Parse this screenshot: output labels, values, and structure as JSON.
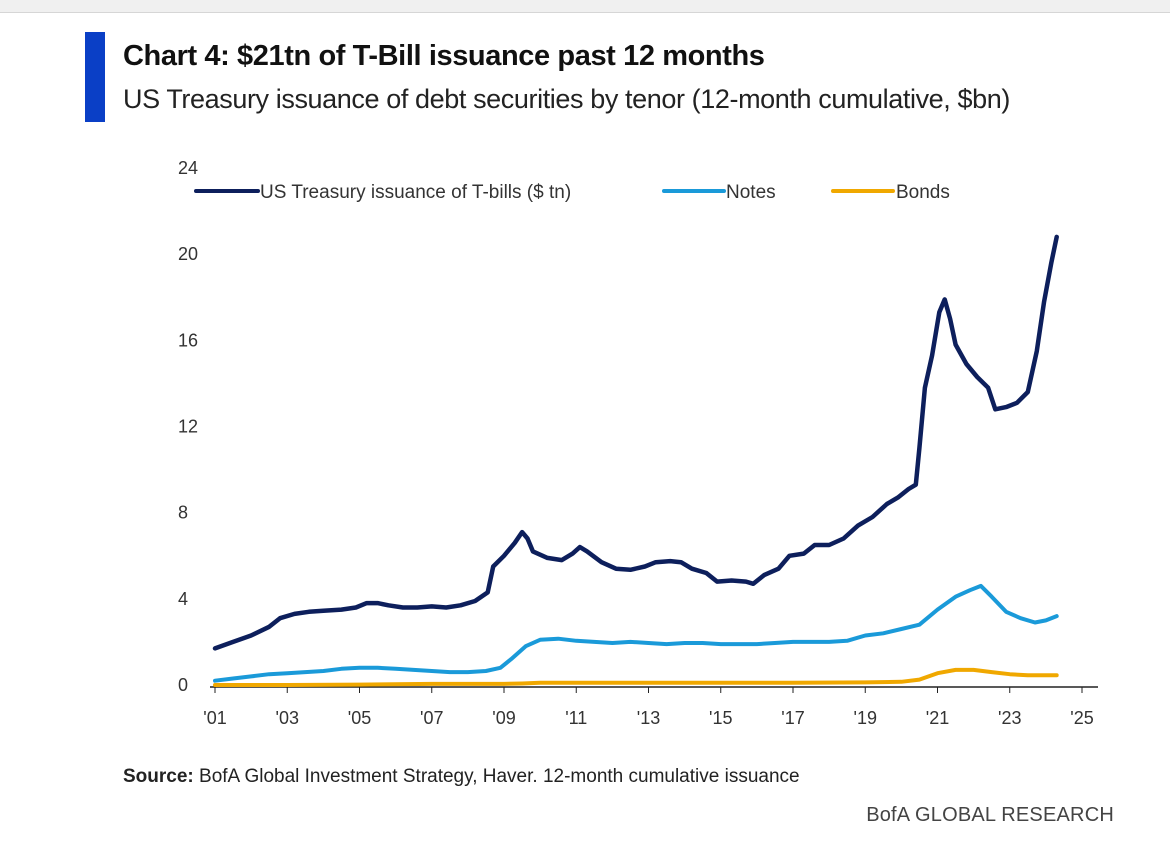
{
  "header": {
    "title": "Chart 4: $21tn of T-Bill issuance past 12 months",
    "subtitle": "US Treasury issuance of debt securities by tenor (12-month cumulative, $bn)"
  },
  "footer": {
    "source_label": "Source:",
    "source_text": " BofA Global Investment Strategy, Haver. 12-month cumulative issuance",
    "brand": "BofA GLOBAL RESEARCH"
  },
  "colors": {
    "accent": "#0a3fc6",
    "tbills": "#0d1f5c",
    "notes": "#1a9ad9",
    "bonds": "#f0a800"
  },
  "chart_data": {
    "type": "line",
    "title": "Chart 4: $21tn of T-Bill issuance past 12 months",
    "subtitle": "US Treasury issuance of debt securities by tenor (12-month cumulative, $bn)",
    "xlabel": "",
    "ylabel": "",
    "xlim": [
      2001,
      2025
    ],
    "ylim": [
      0,
      24
    ],
    "x_ticks": [
      2001,
      2003,
      2005,
      2007,
      2009,
      2011,
      2013,
      2015,
      2017,
      2019,
      2021,
      2023,
      2025
    ],
    "x_tick_labels": [
      "'01",
      "'03",
      "'05",
      "'07",
      "'09",
      "'11",
      "'13",
      "'15",
      "'17",
      "'19",
      "'21",
      "'23",
      "'25"
    ],
    "y_ticks": [
      0,
      4,
      8,
      12,
      16,
      20,
      24
    ],
    "y_tick_labels": [
      "0",
      "4",
      "8",
      "12",
      "16",
      "20",
      "24"
    ],
    "grid": false,
    "legend": "top",
    "series": [
      {
        "name": "US Treasury issuance of T-bills ($ tn)",
        "color": "#0d1f5c",
        "points": [
          [
            2001.0,
            1.7
          ],
          [
            2001.5,
            2.0
          ],
          [
            2002.0,
            2.3
          ],
          [
            2002.5,
            2.7
          ],
          [
            2002.8,
            3.1
          ],
          [
            2003.2,
            3.3
          ],
          [
            2003.6,
            3.4
          ],
          [
            2004.0,
            3.45
          ],
          [
            2004.5,
            3.5
          ],
          [
            2004.9,
            3.6
          ],
          [
            2005.2,
            3.8
          ],
          [
            2005.5,
            3.8
          ],
          [
            2005.8,
            3.7
          ],
          [
            2006.2,
            3.6
          ],
          [
            2006.6,
            3.6
          ],
          [
            2007.0,
            3.65
          ],
          [
            2007.4,
            3.6
          ],
          [
            2007.8,
            3.7
          ],
          [
            2008.2,
            3.9
          ],
          [
            2008.55,
            4.3
          ],
          [
            2008.7,
            5.5
          ],
          [
            2009.0,
            6.0
          ],
          [
            2009.3,
            6.6
          ],
          [
            2009.5,
            7.1
          ],
          [
            2009.65,
            6.8
          ],
          [
            2009.8,
            6.2
          ],
          [
            2010.2,
            5.9
          ],
          [
            2010.6,
            5.8
          ],
          [
            2010.9,
            6.1
          ],
          [
            2011.1,
            6.4
          ],
          [
            2011.3,
            6.2
          ],
          [
            2011.7,
            5.7
          ],
          [
            2012.1,
            5.4
          ],
          [
            2012.5,
            5.35
          ],
          [
            2012.9,
            5.5
          ],
          [
            2013.2,
            5.7
          ],
          [
            2013.6,
            5.75
          ],
          [
            2013.9,
            5.7
          ],
          [
            2014.2,
            5.4
          ],
          [
            2014.6,
            5.2
          ],
          [
            2014.9,
            4.8
          ],
          [
            2015.3,
            4.85
          ],
          [
            2015.7,
            4.8
          ],
          [
            2015.9,
            4.7
          ],
          [
            2016.2,
            5.1
          ],
          [
            2016.6,
            5.4
          ],
          [
            2016.9,
            6.0
          ],
          [
            2017.3,
            6.1
          ],
          [
            2017.6,
            6.5
          ],
          [
            2018.0,
            6.5
          ],
          [
            2018.4,
            6.8
          ],
          [
            2018.8,
            7.4
          ],
          [
            2019.2,
            7.8
          ],
          [
            2019.6,
            8.4
          ],
          [
            2019.9,
            8.7
          ],
          [
            2020.2,
            9.1
          ],
          [
            2020.4,
            9.3
          ],
          [
            2020.5,
            11.0
          ],
          [
            2020.65,
            13.8
          ],
          [
            2020.85,
            15.3
          ],
          [
            2021.05,
            17.3
          ],
          [
            2021.2,
            17.9
          ],
          [
            2021.35,
            17.0
          ],
          [
            2021.5,
            15.8
          ],
          [
            2021.8,
            14.9
          ],
          [
            2022.1,
            14.3
          ],
          [
            2022.4,
            13.8
          ],
          [
            2022.6,
            12.8
          ],
          [
            2022.9,
            12.9
          ],
          [
            2023.2,
            13.1
          ],
          [
            2023.5,
            13.6
          ],
          [
            2023.75,
            15.5
          ],
          [
            2023.95,
            17.8
          ],
          [
            2024.15,
            19.6
          ],
          [
            2024.3,
            20.8
          ]
        ]
      },
      {
        "name": "Notes",
        "color": "#1a9ad9",
        "points": [
          [
            2001.0,
            0.2
          ],
          [
            2001.5,
            0.3
          ],
          [
            2002.0,
            0.4
          ],
          [
            2002.5,
            0.5
          ],
          [
            2003.0,
            0.55
          ],
          [
            2003.5,
            0.6
          ],
          [
            2004.0,
            0.65
          ],
          [
            2004.5,
            0.75
          ],
          [
            2005.0,
            0.8
          ],
          [
            2005.5,
            0.8
          ],
          [
            2006.0,
            0.75
          ],
          [
            2006.5,
            0.7
          ],
          [
            2007.0,
            0.65
          ],
          [
            2007.5,
            0.6
          ],
          [
            2008.0,
            0.6
          ],
          [
            2008.5,
            0.65
          ],
          [
            2008.9,
            0.8
          ],
          [
            2009.2,
            1.2
          ],
          [
            2009.6,
            1.8
          ],
          [
            2010.0,
            2.1
          ],
          [
            2010.5,
            2.15
          ],
          [
            2011.0,
            2.05
          ],
          [
            2011.5,
            2.0
          ],
          [
            2012.0,
            1.95
          ],
          [
            2012.5,
            2.0
          ],
          [
            2013.0,
            1.95
          ],
          [
            2013.5,
            1.9
          ],
          [
            2014.0,
            1.95
          ],
          [
            2014.5,
            1.95
          ],
          [
            2015.0,
            1.9
          ],
          [
            2015.5,
            1.9
          ],
          [
            2016.0,
            1.9
          ],
          [
            2016.5,
            1.95
          ],
          [
            2017.0,
            2.0
          ],
          [
            2017.5,
            2.0
          ],
          [
            2018.0,
            2.0
          ],
          [
            2018.5,
            2.05
          ],
          [
            2019.0,
            2.3
          ],
          [
            2019.5,
            2.4
          ],
          [
            2020.0,
            2.6
          ],
          [
            2020.5,
            2.8
          ],
          [
            2021.0,
            3.5
          ],
          [
            2021.5,
            4.1
          ],
          [
            2021.9,
            4.4
          ],
          [
            2022.2,
            4.6
          ],
          [
            2022.5,
            4.1
          ],
          [
            2022.9,
            3.4
          ],
          [
            2023.3,
            3.1
          ],
          [
            2023.7,
            2.9
          ],
          [
            2024.0,
            3.0
          ],
          [
            2024.3,
            3.2
          ]
        ]
      },
      {
        "name": "Bonds",
        "color": "#f0a800",
        "points": [
          [
            2001.0,
            0.0
          ],
          [
            2003.0,
            0.0
          ],
          [
            2005.0,
            0.02
          ],
          [
            2007.0,
            0.05
          ],
          [
            2009.0,
            0.05
          ],
          [
            2009.5,
            0.07
          ],
          [
            2010.0,
            0.1
          ],
          [
            2011.0,
            0.1
          ],
          [
            2013.0,
            0.1
          ],
          [
            2015.0,
            0.1
          ],
          [
            2017.0,
            0.1
          ],
          [
            2019.0,
            0.12
          ],
          [
            2020.0,
            0.15
          ],
          [
            2020.5,
            0.25
          ],
          [
            2021.0,
            0.55
          ],
          [
            2021.5,
            0.7
          ],
          [
            2022.0,
            0.7
          ],
          [
            2022.5,
            0.6
          ],
          [
            2023.0,
            0.5
          ],
          [
            2023.5,
            0.45
          ],
          [
            2024.0,
            0.45
          ],
          [
            2024.3,
            0.45
          ]
        ]
      }
    ]
  }
}
